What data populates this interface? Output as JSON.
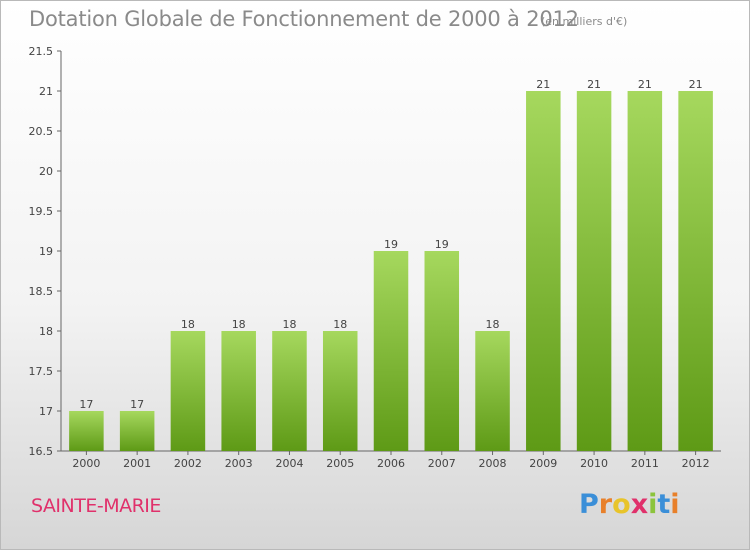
{
  "header": {
    "title": "Dotation Globale de Fonctionnement de 2000 à 2012",
    "subtitle": "(en milliers d'€)"
  },
  "place_name": "SAINTE-MARIE",
  "brand": {
    "name": "Proxiti",
    "letters": [
      "P",
      "r",
      "o",
      "x",
      "i",
      "t",
      "i"
    ],
    "letter_colors": [
      "#3b8fd8",
      "#e8802a",
      "#e8c42a",
      "#e0316b",
      "#8cc43c",
      "#3b8fd8",
      "#e8802a"
    ]
  },
  "colors": {
    "bar_top": "#a6d85e",
    "bar_bottom": "#5e9a16",
    "axis": "#666666",
    "text": "#444444"
  },
  "chart_data": {
    "type": "bar",
    "title": "Dotation Globale de Fonctionnement de 2000 à 2012",
    "subtitle": "(en milliers d'€)",
    "categories": [
      "2000",
      "2001",
      "2002",
      "2003",
      "2004",
      "2005",
      "2006",
      "2007",
      "2008",
      "2009",
      "2010",
      "2011",
      "2012"
    ],
    "values": [
      17,
      17,
      18,
      18,
      18,
      18,
      19,
      19,
      18,
      21,
      21,
      21,
      21
    ],
    "data_labels": [
      "17",
      "17",
      "18",
      "18",
      "18",
      "18",
      "19",
      "19",
      "18",
      "21",
      "21",
      "21",
      "21"
    ],
    "ylim": [
      16.5,
      21.5
    ],
    "yticks": [
      16.5,
      17,
      17.5,
      18,
      18.5,
      19,
      19.5,
      20,
      20.5,
      21,
      21.5
    ],
    "ytick_labels": [
      "16.5",
      "17",
      "17.5",
      "18",
      "18.5",
      "19",
      "19.5",
      "20",
      "20.5",
      "21",
      "21.5"
    ],
    "xlabel": "",
    "ylabel": "",
    "grid": false,
    "legend": "none"
  }
}
